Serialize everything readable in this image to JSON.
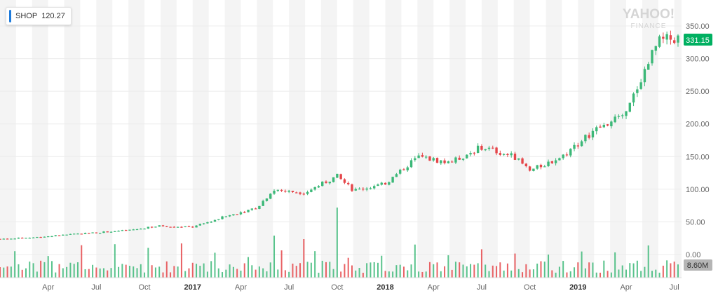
{
  "legend": {
    "symbol": "SHOP",
    "value": "120.27",
    "color": "#1e7bdb"
  },
  "watermark": {
    "line1": "YAHOO!",
    "line2": "FINANCE"
  },
  "price_badge": {
    "label": "331.15",
    "color": "#00b061"
  },
  "volume_badge": {
    "label": "8.60M",
    "color": "#b5b5b5"
  },
  "colors": {
    "up": "#3cb878",
    "down": "#e5464a",
    "band": "#f4f4f4",
    "grid": "#ececec"
  },
  "chart_data": {
    "type": "candlestick",
    "x_axis": {
      "ticks": [
        {
          "label": "Apr",
          "date": "2016-04",
          "bold": false
        },
        {
          "label": "Jul",
          "date": "2016-07",
          "bold": false
        },
        {
          "label": "Oct",
          "date": "2016-10",
          "bold": false
        },
        {
          "label": "2017",
          "date": "2017-01",
          "bold": true
        },
        {
          "label": "Apr",
          "date": "2017-04",
          "bold": false
        },
        {
          "label": "Jul",
          "date": "2017-07",
          "bold": false
        },
        {
          "label": "Oct",
          "date": "2017-10",
          "bold": false
        },
        {
          "label": "2018",
          "date": "2018-01",
          "bold": true
        },
        {
          "label": "Apr",
          "date": "2018-04",
          "bold": false
        },
        {
          "label": "Jul",
          "date": "2018-07",
          "bold": false
        },
        {
          "label": "Oct",
          "date": "2018-10",
          "bold": false
        },
        {
          "label": "2019",
          "date": "2019-01",
          "bold": true
        },
        {
          "label": "Apr",
          "date": "2019-04",
          "bold": false
        },
        {
          "label": "Jul",
          "date": "2019-07",
          "bold": false
        }
      ],
      "range": [
        "2016-01",
        "2019-07"
      ]
    },
    "y_axis": {
      "ticks": [
        "350.00",
        "300.00",
        "250.00",
        "200.00",
        "150.00",
        "100.00",
        "50.00",
        "0.00"
      ],
      "range": [
        0,
        350
      ]
    },
    "series": [
      {
        "name": "SHOP",
        "interval": "weekly",
        "approx_close_anchors": [
          [
            "2016-01",
            24
          ],
          [
            "2016-03",
            26
          ],
          [
            "2016-06",
            32
          ],
          [
            "2016-09",
            37
          ],
          [
            "2016-11",
            44
          ],
          [
            "2017-01",
            42
          ],
          [
            "2017-03",
            58
          ],
          [
            "2017-05",
            72
          ],
          [
            "2017-06",
            98
          ],
          [
            "2017-08",
            95
          ],
          [
            "2017-10",
            120
          ],
          [
            "2017-11",
            98
          ],
          [
            "2018-01",
            108
          ],
          [
            "2018-03",
            150
          ],
          [
            "2018-05",
            140
          ],
          [
            "2018-07",
            165
          ],
          [
            "2018-09",
            150
          ],
          [
            "2018-10",
            128
          ],
          [
            "2018-12",
            150
          ],
          [
            "2019-02",
            190
          ],
          [
            "2019-04",
            215
          ],
          [
            "2019-05",
            275
          ],
          [
            "2019-06",
            325
          ],
          [
            "2019-07",
            331.15
          ]
        ]
      }
    ],
    "volume": {
      "max_label": "8.60M",
      "notable_spikes": [
        {
          "date": "2017-10",
          "relative": 1.0
        },
        {
          "date": "2017-06",
          "relative": 0.6
        },
        {
          "date": "2017-08",
          "relative": 0.55
        }
      ]
    },
    "last_price": 331.15
  }
}
